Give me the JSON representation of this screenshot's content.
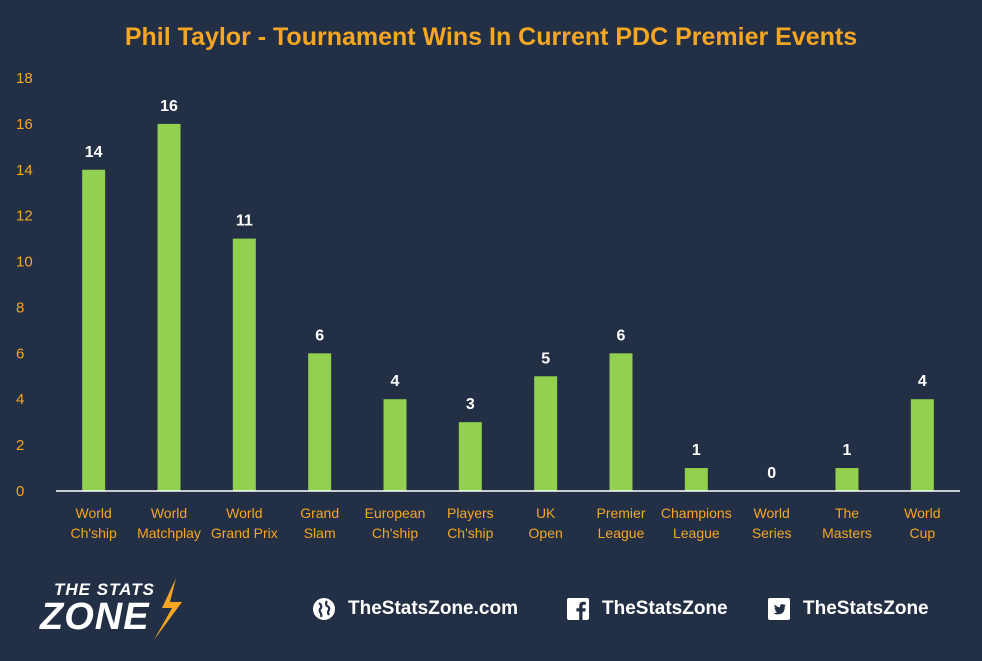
{
  "chart_data": {
    "type": "bar",
    "title": "Phil Taylor - Tournament Wins In Current PDC Premier Events",
    "categories": [
      [
        "World",
        "Ch'ship"
      ],
      [
        "World",
        "Matchplay"
      ],
      [
        "World",
        "Grand Prix"
      ],
      [
        "Grand",
        "Slam"
      ],
      [
        "European",
        "Ch'ship"
      ],
      [
        "Players",
        "Ch'ship"
      ],
      [
        "UK",
        "Open"
      ],
      [
        "Premier",
        "League"
      ],
      [
        "Champions",
        "League"
      ],
      [
        "World",
        "Series"
      ],
      [
        "The",
        "Masters"
      ],
      [
        "World",
        "Cup"
      ]
    ],
    "values": [
      14,
      16,
      11,
      6,
      4,
      3,
      5,
      6,
      1,
      0,
      1,
      4
    ],
    "ylim": [
      0,
      18
    ],
    "yticks": [
      0,
      2,
      4,
      6,
      8,
      10,
      12,
      14,
      16,
      18
    ],
    "xlabel": "",
    "ylabel": "",
    "grid": false,
    "data_labels": true,
    "colors": {
      "bar": "#92d050",
      "title": "#f5a623",
      "ytick": "#f5a623",
      "xtick": "#f5a623",
      "data_label": "#ffffff",
      "axis": "#ffffff",
      "background": "#232f44"
    }
  },
  "footer": {
    "logo_top": "THE STATS",
    "logo_bottom": "ZONE",
    "website": "TheStatsZone.com",
    "facebook": "TheStatsZone",
    "twitter": "TheStatsZone",
    "icons": {
      "website": "globe-icon",
      "facebook": "facebook-icon",
      "twitter": "twitter-icon"
    }
  }
}
